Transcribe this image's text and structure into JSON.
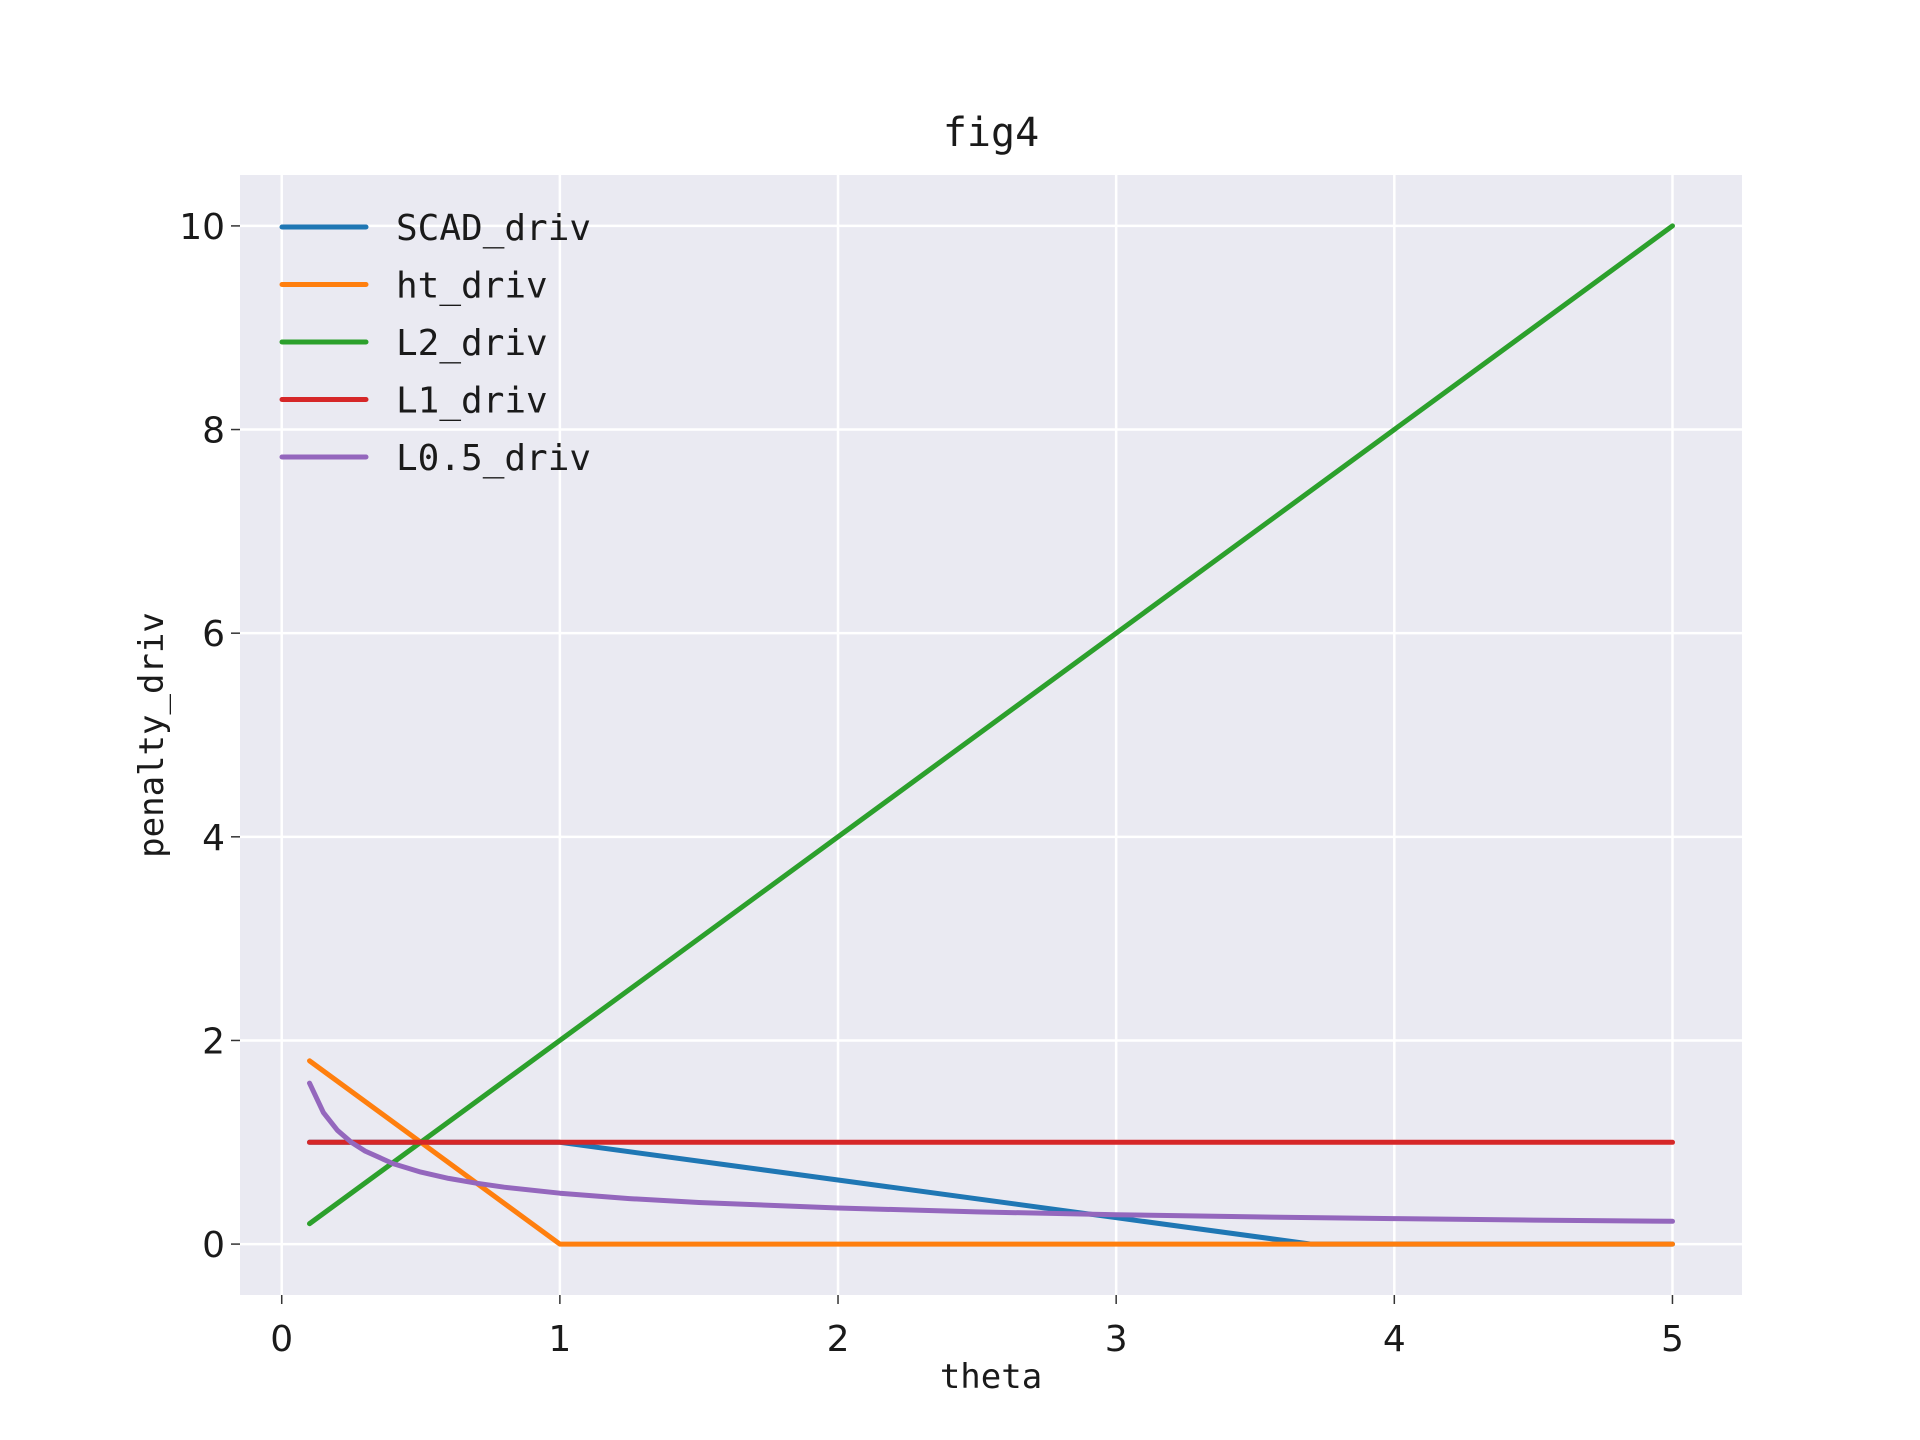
{
  "chart_data": {
    "type": "line",
    "title": "fig4",
    "xlabel": "theta",
    "ylabel": "penalty_driv",
    "xlim": [
      -0.15,
      5.25
    ],
    "ylim": [
      -0.5,
      10.5
    ],
    "xticks": [
      0,
      1,
      2,
      3,
      4,
      5
    ],
    "yticks": [
      0,
      2,
      4,
      6,
      8,
      10
    ],
    "grid": true,
    "legend_position": "top-left",
    "background_color": "#eaeaf2",
    "series": [
      {
        "name": "SCAD_driv",
        "color": "#1f77b4",
        "x": [
          0.1,
          1.0,
          2.0,
          3.0,
          3.7,
          5.0
        ],
        "y": [
          1.0,
          1.0,
          0.6296,
          0.2593,
          0.0,
          0.0
        ]
      },
      {
        "name": "ht_driv",
        "color": "#ff7f0e",
        "x": [
          0.1,
          1.0,
          5.0
        ],
        "y": [
          1.8,
          0.0,
          0.0
        ]
      },
      {
        "name": "L2_driv",
        "color": "#2ca02c",
        "x": [
          0.1,
          5.0
        ],
        "y": [
          0.2,
          10.0
        ]
      },
      {
        "name": "L1_driv",
        "color": "#d62728",
        "x": [
          0.1,
          5.0
        ],
        "y": [
          1.0,
          1.0
        ]
      },
      {
        "name": "L0.5_driv",
        "color": "#9467bd",
        "x": [
          0.1,
          0.15,
          0.2,
          0.25,
          0.3,
          0.4,
          0.5,
          0.6,
          0.7,
          0.8,
          1.0,
          1.25,
          1.5,
          2.0,
          2.5,
          3.0,
          3.5,
          4.0,
          4.5,
          5.0
        ],
        "y": [
          1.581,
          1.291,
          1.118,
          1.0,
          0.913,
          0.791,
          0.707,
          0.645,
          0.598,
          0.559,
          0.5,
          0.447,
          0.408,
          0.354,
          0.316,
          0.289,
          0.267,
          0.25,
          0.236,
          0.224
        ]
      }
    ]
  }
}
